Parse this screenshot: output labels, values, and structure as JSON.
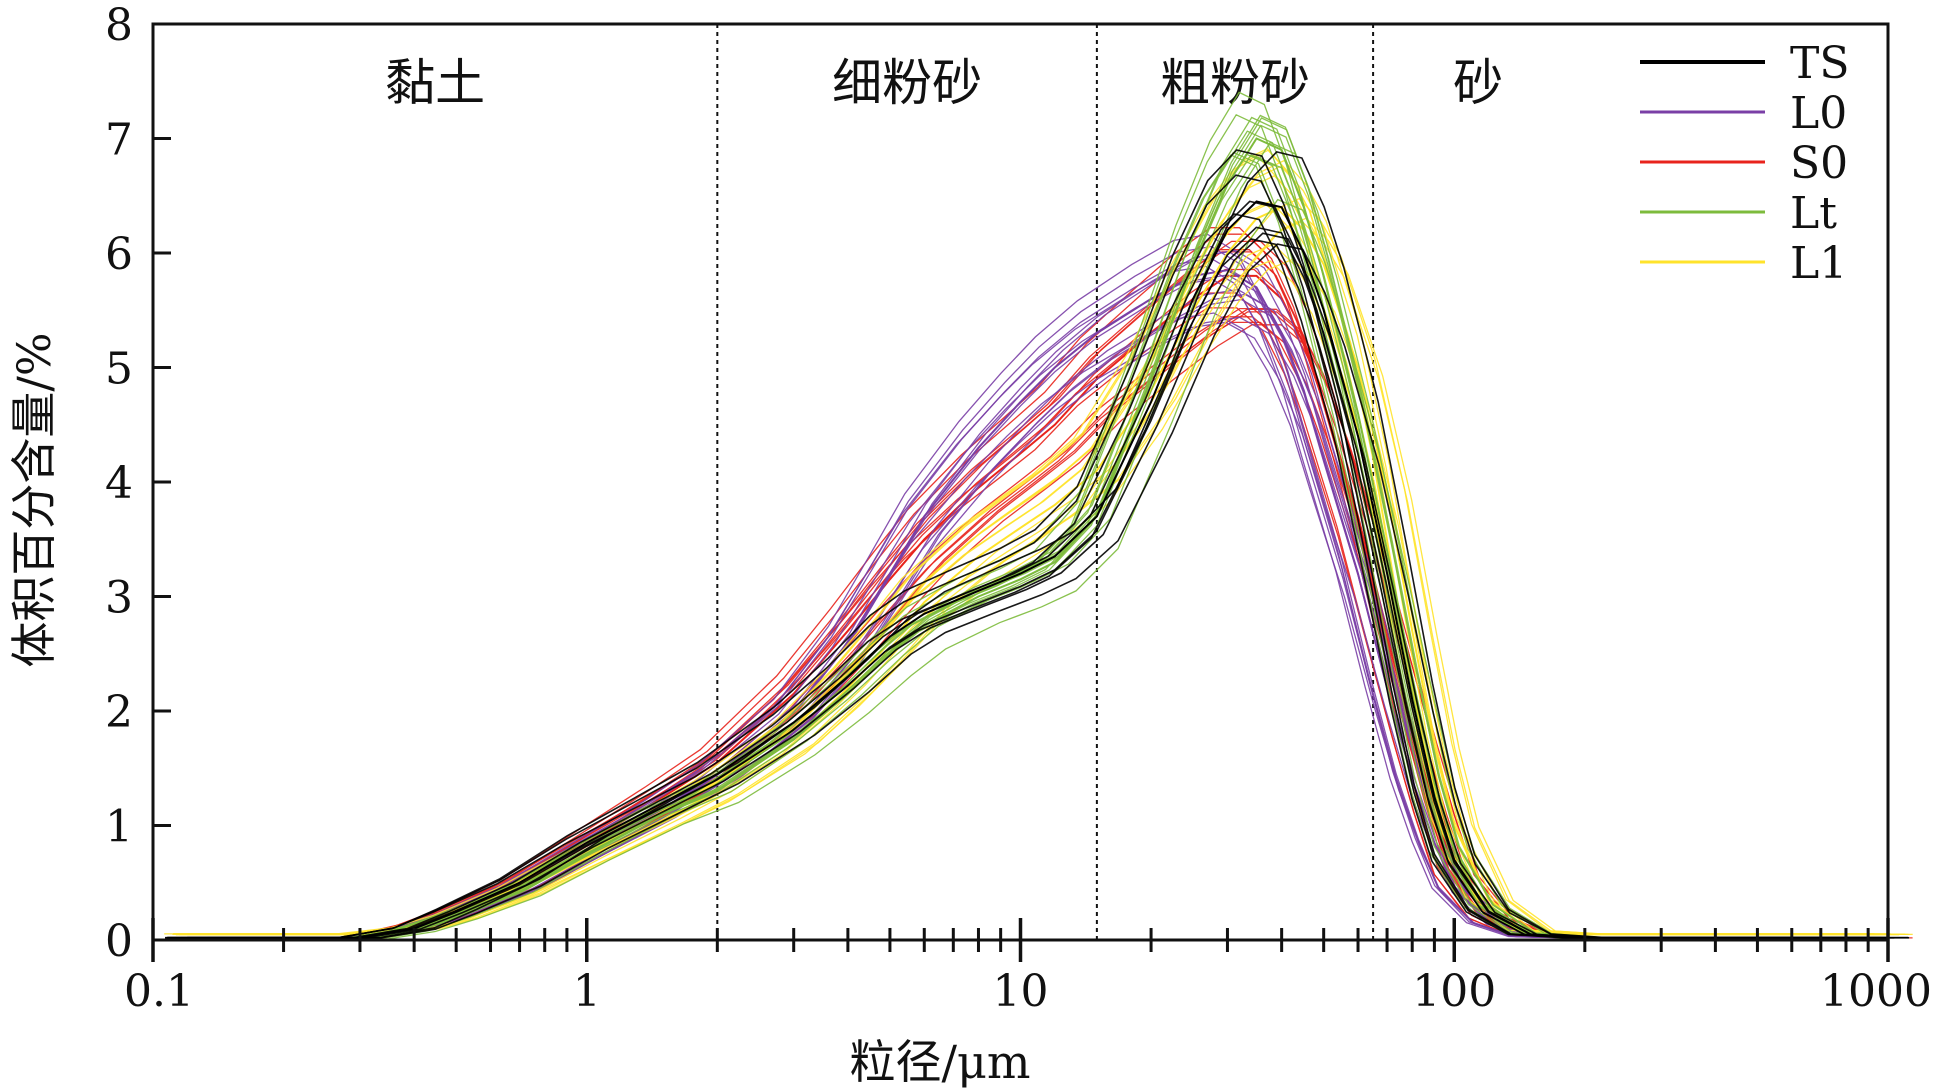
{
  "chart_data": {
    "type": "line",
    "x_scale": "log",
    "xlim": [
      0.1,
      1000
    ],
    "ylim": [
      0,
      8
    ],
    "xlabel": "粒径/μm",
    "ylabel": "体积百分含量/%",
    "x_ticks": [
      "0.1",
      "1",
      "10",
      "100",
      "1000"
    ],
    "y_ticks": [
      "0",
      "1",
      "2",
      "3",
      "4",
      "5",
      "6",
      "7",
      "8"
    ],
    "grid": false,
    "legend_position": "top-right",
    "zones": [
      {
        "label": "黏土",
        "x_end": 2
      },
      {
        "label": "细粉砂",
        "x_end": 15
      },
      {
        "label": "粗粉砂",
        "x_end": 65
      },
      {
        "label": "砂"
      }
    ],
    "series": [
      {
        "name": "TS",
        "color": "#000000",
        "width": 3.2,
        "x": [
          0.12,
          0.3,
          0.4,
          0.5,
          0.7,
          1,
          1.5,
          2,
          3,
          4,
          5,
          6,
          8,
          10,
          12,
          15,
          20,
          25,
          30,
          35,
          40,
          45,
          50,
          60,
          70,
          80,
          90,
          100,
          120,
          150,
          200,
          1000
        ],
        "y": [
          0.02,
          0.02,
          0.1,
          0.25,
          0.5,
          0.85,
          1.2,
          1.45,
          1.9,
          2.3,
          2.65,
          2.85,
          3.05,
          3.2,
          3.35,
          3.7,
          4.7,
          5.6,
          6.2,
          6.45,
          6.4,
          6.0,
          5.5,
          4.4,
          3.2,
          2.1,
          1.25,
          0.7,
          0.25,
          0.05,
          0.02,
          0.02
        ]
      },
      {
        "name": "L0",
        "color": "#7a3fa6",
        "width": 2.2,
        "x": [
          0.12,
          0.3,
          0.4,
          0.5,
          0.7,
          1,
          1.5,
          2,
          3,
          4,
          5,
          6,
          8,
          10,
          12,
          15,
          20,
          25,
          30,
          35,
          40,
          45,
          50,
          60,
          70,
          80,
          90,
          100,
          120,
          150,
          200,
          1000
        ],
        "y": [
          0.02,
          0.02,
          0.1,
          0.22,
          0.45,
          0.78,
          1.15,
          1.45,
          2.0,
          2.6,
          3.2,
          3.7,
          4.3,
          4.7,
          5.0,
          5.3,
          5.6,
          5.8,
          5.85,
          5.7,
          5.3,
          4.8,
          4.2,
          3.2,
          2.2,
          1.4,
          0.85,
          0.45,
          0.15,
          0.03,
          0.02,
          0.02
        ]
      },
      {
        "name": "S0",
        "color": "#e8231c",
        "width": 2.2,
        "x": [
          0.12,
          0.3,
          0.4,
          0.5,
          0.7,
          1,
          1.5,
          2,
          3,
          4,
          5,
          6,
          8,
          10,
          12,
          15,
          20,
          25,
          30,
          35,
          40,
          45,
          50,
          60,
          70,
          80,
          90,
          100,
          120,
          150,
          200,
          1000
        ],
        "y": [
          0.02,
          0.02,
          0.12,
          0.25,
          0.5,
          0.85,
          1.25,
          1.55,
          2.15,
          2.7,
          3.15,
          3.5,
          3.95,
          4.25,
          4.5,
          4.9,
          5.3,
          5.6,
          5.8,
          5.8,
          5.6,
          5.2,
          4.7,
          3.7,
          2.7,
          1.85,
          1.15,
          0.6,
          0.2,
          0.04,
          0.02,
          0.02
        ]
      },
      {
        "name": "Lt",
        "color": "#7dbb3c",
        "width": 2.2,
        "x": [
          0.12,
          0.3,
          0.4,
          0.5,
          0.7,
          1,
          1.5,
          2,
          3,
          4,
          5,
          6,
          8,
          10,
          12,
          15,
          20,
          25,
          30,
          35,
          40,
          45,
          50,
          60,
          70,
          80,
          90,
          100,
          120,
          150,
          200,
          1000
        ],
        "y": [
          0.0,
          0.0,
          0.08,
          0.2,
          0.42,
          0.75,
          1.1,
          1.3,
          1.75,
          2.15,
          2.5,
          2.75,
          3.0,
          3.15,
          3.3,
          3.7,
          4.9,
          5.9,
          6.6,
          7.0,
          6.9,
          6.4,
          5.8,
          4.6,
          3.4,
          2.3,
          1.4,
          0.8,
          0.3,
          0.06,
          0.02,
          0.02
        ]
      },
      {
        "name": "L1",
        "color": "#ffe32b",
        "width": 2.2,
        "x": [
          0.12,
          0.3,
          0.4,
          0.5,
          0.7,
          1,
          1.5,
          2,
          3,
          4,
          5,
          6,
          8,
          10,
          12,
          15,
          20,
          25,
          30,
          35,
          40,
          45,
          50,
          60,
          70,
          80,
          90,
          100,
          120,
          150,
          200,
          1000
        ],
        "y": [
          0.05,
          0.05,
          0.1,
          0.2,
          0.42,
          0.72,
          1.05,
          1.3,
          1.75,
          2.2,
          2.6,
          2.95,
          3.35,
          3.6,
          3.8,
          4.1,
          4.8,
          5.5,
          6.0,
          6.3,
          6.4,
          6.2,
          5.9,
          5.0,
          3.9,
          2.7,
          1.7,
          1.0,
          0.35,
          0.08,
          0.05,
          0.05
        ]
      }
    ]
  }
}
